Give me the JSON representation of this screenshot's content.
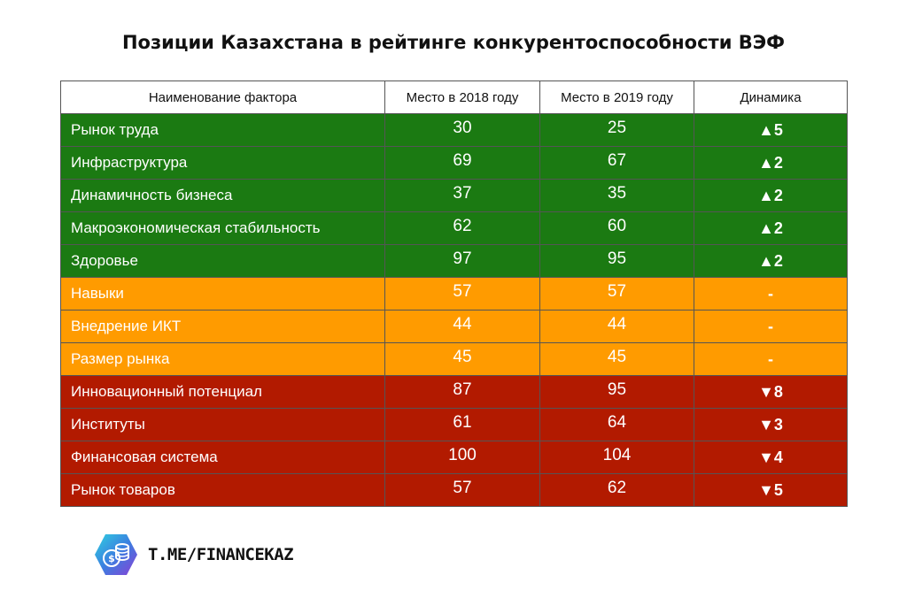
{
  "colors": {
    "up": "#1b7a12",
    "same": "#ff9b00",
    "down": "#b21a00"
  },
  "chart_data": {
    "type": "table",
    "title": "Позиции Казахстана в рейтинге конкурентоспособности ВЭФ",
    "columns": [
      "Наименование фактора",
      "Место в 2018 году",
      "Место в 2019 году",
      "Динамика"
    ],
    "rows": [
      {
        "factor": "Рынок труда",
        "y2018": "30",
        "y2019": "25",
        "dyn": "▲5",
        "status": "up"
      },
      {
        "factor": "Инфраструктура",
        "y2018": "69",
        "y2019": "67",
        "dyn": "▲2",
        "status": "up"
      },
      {
        "factor": "Динамичность бизнеса",
        "y2018": "37",
        "y2019": "35",
        "dyn": "▲2",
        "status": "up"
      },
      {
        "factor": "Макроэкономическая стабильность",
        "y2018": "62",
        "y2019": "60",
        "dyn": "▲2",
        "status": "up"
      },
      {
        "factor": "Здоровье",
        "y2018": "97",
        "y2019": "95",
        "dyn": "▲2",
        "status": "up"
      },
      {
        "factor": "Навыки",
        "y2018": "57",
        "y2019": "57",
        "dyn": "-",
        "status": "same"
      },
      {
        "factor": "Внедрение ИКТ",
        "y2018": "44",
        "y2019": "44",
        "dyn": "-",
        "status": "same"
      },
      {
        "factor": "Размер рынка",
        "y2018": "45",
        "y2019": "45",
        "dyn": "-",
        "status": "same"
      },
      {
        "factor": "Инновационный потенциал",
        "y2018": "87",
        "y2019": "95",
        "dyn": "▼8",
        "status": "down"
      },
      {
        "factor": "Институты",
        "y2018": "61",
        "y2019": "64",
        "dyn": "▼3",
        "status": "down"
      },
      {
        "factor": "Финансовая система",
        "y2018": "100",
        "y2019": "104",
        "dyn": "▼4",
        "status": "down"
      },
      {
        "factor": "Рынок товаров",
        "y2018": "57",
        "y2019": "62",
        "dyn": "▼5",
        "status": "down"
      }
    ]
  },
  "footer": {
    "logo_icon": "coins-hexagon-icon",
    "text": "T.ME/FINANCEKAZ"
  }
}
